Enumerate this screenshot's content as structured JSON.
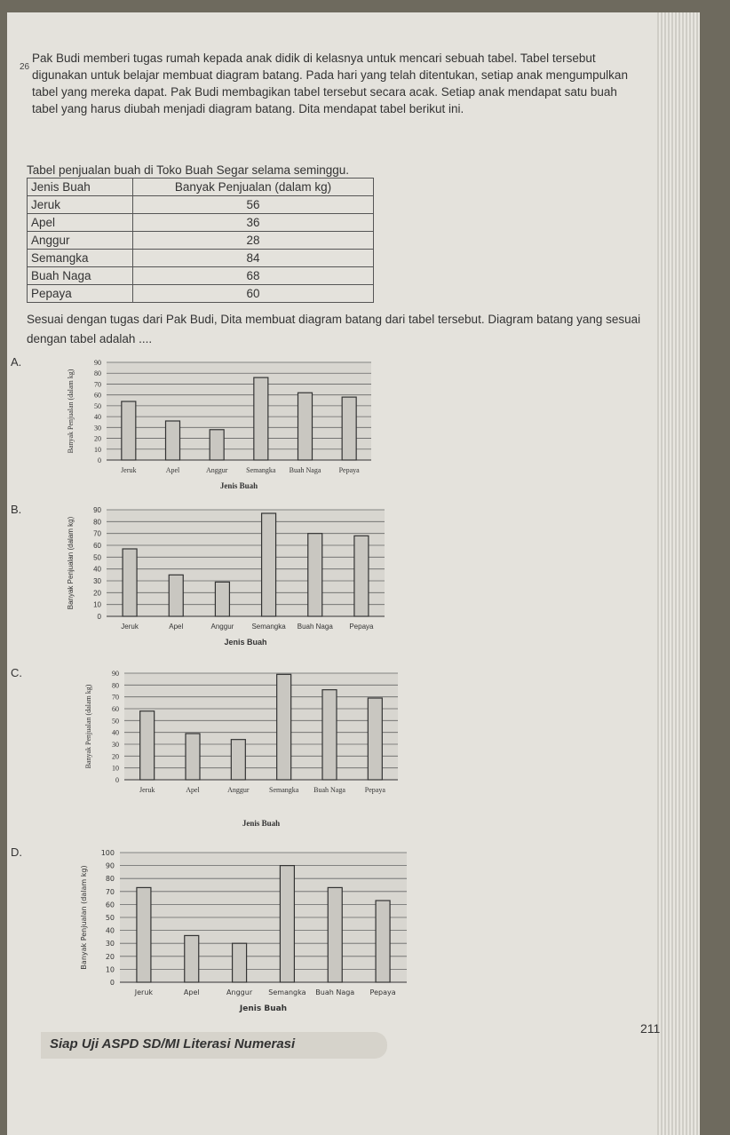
{
  "question": {
    "number": "26",
    "text": "Pak Budi memberi tugas rumah kepada anak didik di kelasnya untuk mencari sebuah tabel. Tabel tersebut digunakan untuk belajar membuat diagram batang. Pada hari yang telah ditentukan, setiap anak mengumpulkan tabel yang mereka dapat. Pak Budi membagikan tabel tersebut secara acak. Setiap anak mendapat satu buah tabel yang harus diubah menjadi diagram batang. Dita mendapat tabel berikut ini.",
    "caption": "Tabel penjualan buah di Toko Buah Segar selama seminggu.",
    "prompt": "Sesuai dengan tugas dari Pak Budi, Dita membuat diagram batang dari tabel tersebut. Diagram batang yang sesuai dengan tabel adalah ...."
  },
  "table": {
    "header": [
      "Jenis Buah",
      "Banyak Penjualan (dalam kg)"
    ],
    "rows": [
      [
        "Jeruk",
        56
      ],
      [
        "Apel",
        36
      ],
      [
        "Anggur",
        28
      ],
      [
        "Semangka",
        84
      ],
      [
        "Buah Naga",
        68
      ],
      [
        "Pepaya",
        60
      ]
    ]
  },
  "options": [
    {
      "label": "A.",
      "chart_data": {
        "type": "bar",
        "x_label": "Jenis Buah",
        "y_label": "Banyak Penjualan (dalam kg)",
        "categories": [
          "Jeruk",
          "Apel",
          "Anggur",
          "Semangka",
          "Buah Naga",
          "Pepaya"
        ],
        "values": [
          54,
          36,
          28,
          76,
          62,
          58
        ],
        "ylim": [
          0,
          90
        ],
        "yticks": [
          0,
          10,
          20,
          30,
          40,
          50,
          60,
          70,
          80,
          90
        ],
        "grid": true
      }
    },
    {
      "label": "B.",
      "chart_data": {
        "type": "bar",
        "x_label": "Jenis Buah",
        "y_label": "Banyak Penjualan (dalam kg)",
        "categories": [
          "Jeruk",
          "Apel",
          "Anggur",
          "Semangka",
          "Buah Naga",
          "Pepaya"
        ],
        "values": [
          57,
          35,
          29,
          87,
          70,
          68
        ],
        "ylim": [
          0,
          90
        ],
        "yticks": [
          0,
          10,
          20,
          30,
          40,
          50,
          60,
          70,
          80,
          90
        ],
        "grid": true
      }
    },
    {
      "label": "C.",
      "chart_data": {
        "type": "bar",
        "x_label": "Jenis Buah",
        "y_label": "Banyak Penjualan (dalam kg)",
        "categories": [
          "Jeruk",
          "Apel",
          "Anggur",
          "Semangka",
          "Buah Naga",
          "Pepaya"
        ],
        "values": [
          58,
          39,
          34,
          89,
          76,
          69
        ],
        "ylim": [
          0,
          90
        ],
        "yticks": [
          0,
          10,
          20,
          30,
          40,
          50,
          60,
          70,
          80,
          90
        ],
        "grid": true
      }
    },
    {
      "label": "D.",
      "chart_data": {
        "type": "bar",
        "x_label": "Jenis Buah",
        "y_label": "Banyak Penjualan (dalam kg)",
        "categories": [
          "Jeruk",
          "Apel",
          "Anggur",
          "Semangka",
          "Buah Naga",
          "Pepaya"
        ],
        "values": [
          73,
          36,
          30,
          90,
          73,
          63
        ],
        "ylim": [
          0,
          100
        ],
        "yticks": [
          0,
          10,
          20,
          30,
          40,
          50,
          60,
          70,
          80,
          90,
          100
        ],
        "grid": true
      }
    }
  ],
  "footer": {
    "book": "Siap Uji ASPD SD/MI Literasi Numerasi",
    "page": "211"
  }
}
